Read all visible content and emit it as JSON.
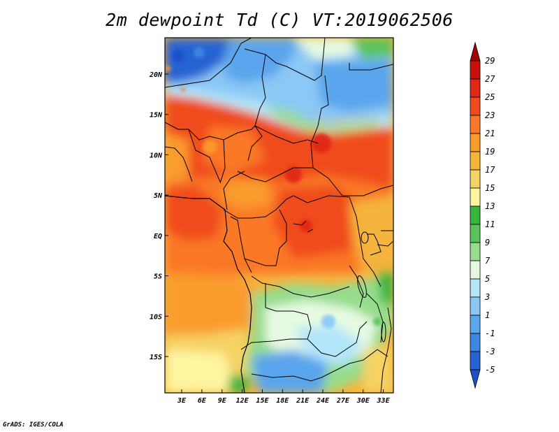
{
  "title": "2m dewpoint Td (C) VT:2019062506",
  "credit": "GrADS: IGES/COLA",
  "map": {
    "lat_range": [
      -19.5,
      24.5
    ],
    "lon_range": [
      0.5,
      34.5
    ],
    "lat_ticks": [
      {
        "value": 20,
        "label": "20N"
      },
      {
        "value": 15,
        "label": "15N"
      },
      {
        "value": 10,
        "label": "10N"
      },
      {
        "value": 5,
        "label": "5N"
      },
      {
        "value": 0,
        "label": "EQ"
      },
      {
        "value": -5,
        "label": "5S"
      },
      {
        "value": -10,
        "label": "10S"
      },
      {
        "value": -15,
        "label": "15S"
      }
    ],
    "lon_ticks": [
      {
        "value": 3,
        "label": "3E"
      },
      {
        "value": 6,
        "label": "6E"
      },
      {
        "value": 9,
        "label": "9E"
      },
      {
        "value": 12,
        "label": "12E"
      },
      {
        "value": 15,
        "label": "15E"
      },
      {
        "value": 18,
        "label": "18E"
      },
      {
        "value": 21,
        "label": "21E"
      },
      {
        "value": 24,
        "label": "24E"
      },
      {
        "value": 27,
        "label": "27E"
      },
      {
        "value": 30,
        "label": "30E"
      },
      {
        "value": 33,
        "label": "33E"
      }
    ]
  },
  "colorbar": {
    "labels": [
      "29",
      "27",
      "25",
      "23",
      "21",
      "19",
      "17",
      "15",
      "13",
      "11",
      "9",
      "7",
      "5",
      "3",
      "1",
      "-1",
      "-3",
      "-5"
    ],
    "colors": [
      "#a50000",
      "#c80f0a",
      "#e12814",
      "#f04b1e",
      "#fa7828",
      "#fa9b2d",
      "#f5b43c",
      "#f5d264",
      "#fff5a0",
      "#37b43c",
      "#5ac35a",
      "#96dc8c",
      "#e6fae1",
      "#b4e6fa",
      "#8cc8f5",
      "#5aa5ed",
      "#3c87e1",
      "#2864d2",
      "#1e50c8"
    ]
  }
}
